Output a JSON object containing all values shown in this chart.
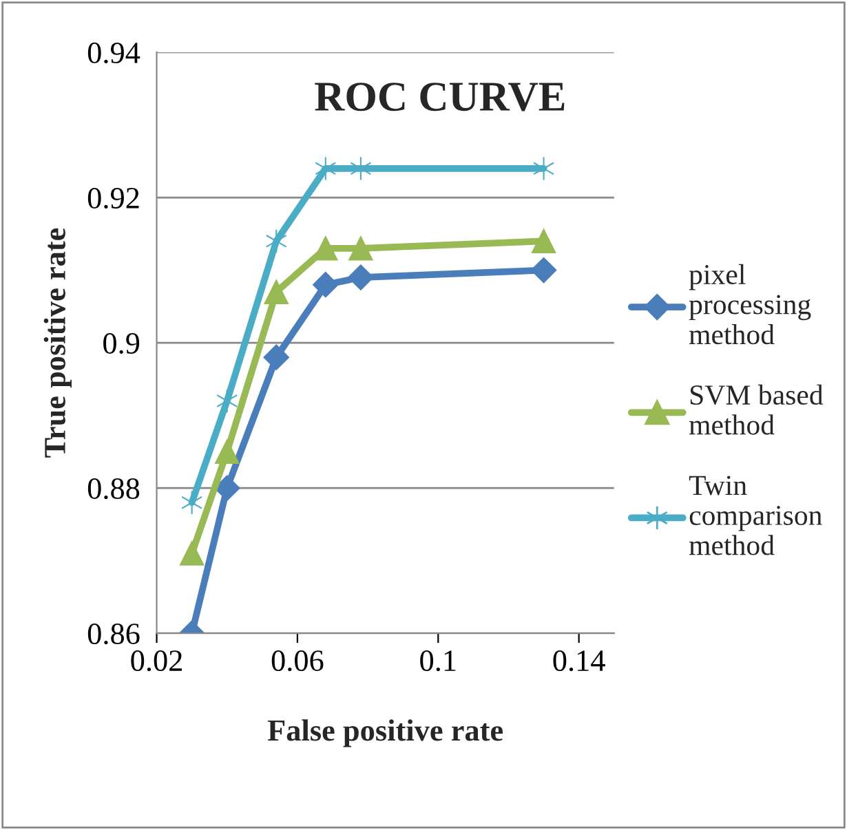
{
  "chart_data": {
    "type": "line",
    "title": "ROC CURVE",
    "xlabel": "False positive rate",
    "ylabel": "True positive rate",
    "xlim": [
      0.02,
      0.15
    ],
    "xticks": [
      0.02,
      0.06,
      0.1,
      0.14
    ],
    "ylim": [
      0.86,
      0.94
    ],
    "yticks": [
      0.86,
      0.88,
      0.9,
      0.92,
      0.94
    ],
    "grid": "y",
    "legend": "right",
    "series": [
      {
        "name": "pixel processing method",
        "color": "#4a7ebb",
        "marker": "diamond",
        "x": [
          0.03,
          0.04,
          0.054,
          0.068,
          0.078,
          0.13
        ],
        "values": [
          0.86,
          0.88,
          0.898,
          0.908,
          0.909,
          0.91
        ]
      },
      {
        "name": "SVM based method",
        "color": "#98b954",
        "marker": "triangle",
        "x": [
          0.03,
          0.04,
          0.054,
          0.068,
          0.078,
          0.13
        ],
        "values": [
          0.871,
          0.885,
          0.907,
          0.913,
          0.913,
          0.914
        ]
      },
      {
        "name": "Twin comparison method",
        "color": "#4bacc6",
        "marker": "cross",
        "x": [
          0.03,
          0.04,
          0.054,
          0.068,
          0.078,
          0.13
        ],
        "values": [
          0.878,
          0.892,
          0.914,
          0.924,
          0.924,
          0.924
        ]
      }
    ]
  }
}
